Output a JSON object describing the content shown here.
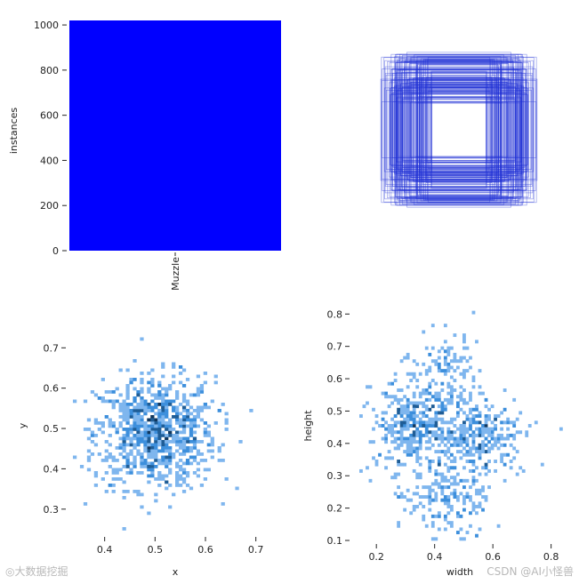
{
  "watermarks": {
    "left": "◎大数据挖掘",
    "right": "CSDN @AI小怪兽"
  },
  "colors": {
    "bar": "#0000ff",
    "box_stroke": "#1f2fd6",
    "hist_light": "#7fb6ee",
    "hist_mid": "#3d8fdc",
    "hist_dark": "#1f5d96",
    "hist_darkest": "#10365c"
  },
  "chart_data": [
    {
      "id": "instances-bar",
      "type": "bar",
      "categories": [
        "Muzzle"
      ],
      "values": [
        1020
      ],
      "xlabel": "",
      "ylabel": "instances",
      "ylim": [
        0,
        1020
      ],
      "yticks": [
        "0",
        "200",
        "400",
        "600",
        "800",
        "1000"
      ],
      "grid": false
    },
    {
      "id": "box-outlines",
      "type": "scatter",
      "description_kind": "overlaid centered bounding-box outlines",
      "boxes_wh": [
        [
          0.82,
          0.77
        ],
        [
          0.66,
          0.8
        ],
        [
          0.55,
          0.82
        ],
        [
          0.77,
          0.58
        ],
        [
          0.45,
          0.62
        ],
        [
          0.38,
          0.4
        ],
        [
          0.6,
          0.45
        ],
        [
          0.7,
          0.6
        ],
        [
          0.52,
          0.7
        ],
        [
          0.42,
          0.52
        ],
        [
          0.3,
          0.35
        ],
        [
          0.65,
          0.42
        ],
        [
          0.48,
          0.55
        ],
        [
          0.58,
          0.66
        ],
        [
          0.35,
          0.48
        ],
        [
          0.74,
          0.5
        ],
        [
          0.5,
          0.38
        ],
        [
          0.62,
          0.72
        ],
        [
          0.4,
          0.6
        ],
        [
          0.56,
          0.5
        ]
      ],
      "grid": false
    },
    {
      "id": "xy-hist",
      "type": "heatmap",
      "xlabel": "x",
      "ylabel": "y",
      "xlim": [
        0.33,
        0.75
      ],
      "ylim": [
        0.24,
        0.78
      ],
      "xticks": [
        "0.4",
        "0.5",
        "0.6",
        "0.7"
      ],
      "yticks": [
        "0.3",
        "0.4",
        "0.5",
        "0.6",
        "0.7"
      ],
      "center": [
        0.5,
        0.49
      ],
      "spread": [
        0.06,
        0.07
      ],
      "grid": false
    },
    {
      "id": "wh-hist",
      "type": "heatmap",
      "xlabel": "width",
      "ylabel": "height",
      "xlim": [
        0.12,
        0.85
      ],
      "ylim": [
        0.1,
        0.82
      ],
      "xticks": [
        "0.2",
        "0.4",
        "0.6",
        "0.8"
      ],
      "yticks": [
        "0.1",
        "0.2",
        "0.3",
        "0.4",
        "0.5",
        "0.6",
        "0.7",
        "0.8"
      ],
      "clusters": [
        [
          0.32,
          0.45,
          0.06,
          0.08
        ],
        [
          0.55,
          0.42,
          0.08,
          0.06
        ],
        [
          0.45,
          0.22,
          0.07,
          0.06
        ],
        [
          0.45,
          0.6,
          0.06,
          0.1
        ]
      ],
      "grid": false
    }
  ]
}
